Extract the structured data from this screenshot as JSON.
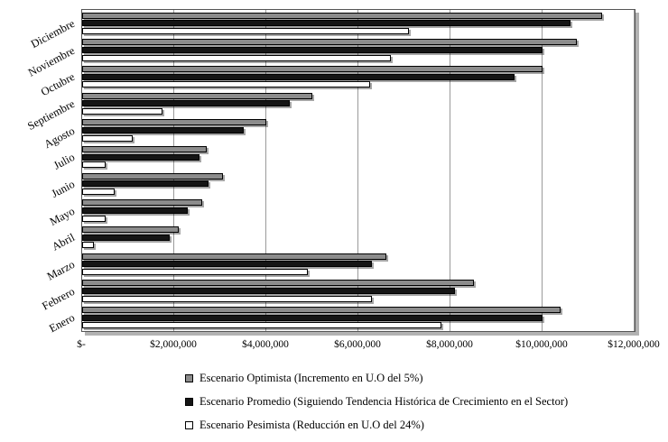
{
  "chart_data": {
    "type": "bar",
    "orientation": "horizontal",
    "title": "",
    "xlabel": "",
    "ylabel": "",
    "xlim": [
      0,
      12000000
    ],
    "grid": true,
    "legend_position": "bottom",
    "xticks": [
      "$-",
      "$2,000,000",
      "$4,000,000",
      "$6,000,000",
      "$8,000,000",
      "$10,000,000",
      "$12,000,000"
    ],
    "xtick_values": [
      0,
      2000000,
      4000000,
      6000000,
      8000000,
      10000000,
      12000000
    ],
    "categories": [
      "Diciembre",
      "Noviembre",
      "Octubre",
      "Septiembre",
      "Agosto",
      "Julio",
      "Junio",
      "Mayo",
      "Abril",
      "Marzo",
      "Febrero",
      "Enero"
    ],
    "series": [
      {
        "name": "Escenario Optimista (Incremento en U.O del 5%)",
        "color": "#8c8c8c",
        "values": [
          11300000,
          10750000,
          10000000,
          5000000,
          4000000,
          2700000,
          3050000,
          2600000,
          2100000,
          6600000,
          8500000,
          10400000
        ]
      },
      {
        "name": "Escenario Promedio (Siguiendo Tendencia Histórica de Crecimiento en el Sector)",
        "color": "#151515",
        "values": [
          10600000,
          10000000,
          9400000,
          4500000,
          3500000,
          2550000,
          2750000,
          2300000,
          1900000,
          6300000,
          8100000,
          10000000
        ]
      },
      {
        "name": "Escenario Pesimista (Reducción en U.O del 24%)",
        "color": "#ffffff",
        "values": [
          7100000,
          6700000,
          6250000,
          1750000,
          1100000,
          500000,
          700000,
          500000,
          250000,
          4900000,
          6300000,
          7800000
        ]
      }
    ]
  }
}
